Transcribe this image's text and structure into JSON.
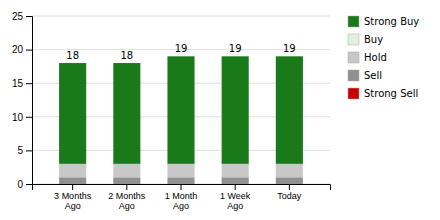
{
  "chart_data": {
    "type": "bar",
    "stacked": true,
    "categories": [
      "3 Months\nAgo",
      "2 Months\nAgo",
      "1 Month\nAgo",
      "1 Week\nAgo",
      "Today"
    ],
    "series": [
      {
        "name": "Strong Sell",
        "color": "#cc0000",
        "values": [
          0,
          0,
          0,
          0,
          0
        ]
      },
      {
        "name": "Sell",
        "color": "#909090",
        "values": [
          1,
          1,
          1,
          1,
          1
        ]
      },
      {
        "name": "Hold",
        "color": "#c8c8c8",
        "values": [
          2,
          2,
          2,
          2,
          2
        ]
      },
      {
        "name": "Buy",
        "color": "#e0f0e0",
        "values": [
          0,
          0,
          0,
          0,
          0
        ]
      },
      {
        "name": "Strong Buy",
        "color": "#1a7a1a",
        "values": [
          15,
          15,
          16,
          16,
          16
        ]
      }
    ],
    "totals": [
      18,
      18,
      19,
      19,
      19
    ],
    "ylim": [
      0,
      25
    ],
    "yticks": [
      0,
      5,
      10,
      15,
      20,
      25
    ],
    "grid": true,
    "legend": "right"
  }
}
